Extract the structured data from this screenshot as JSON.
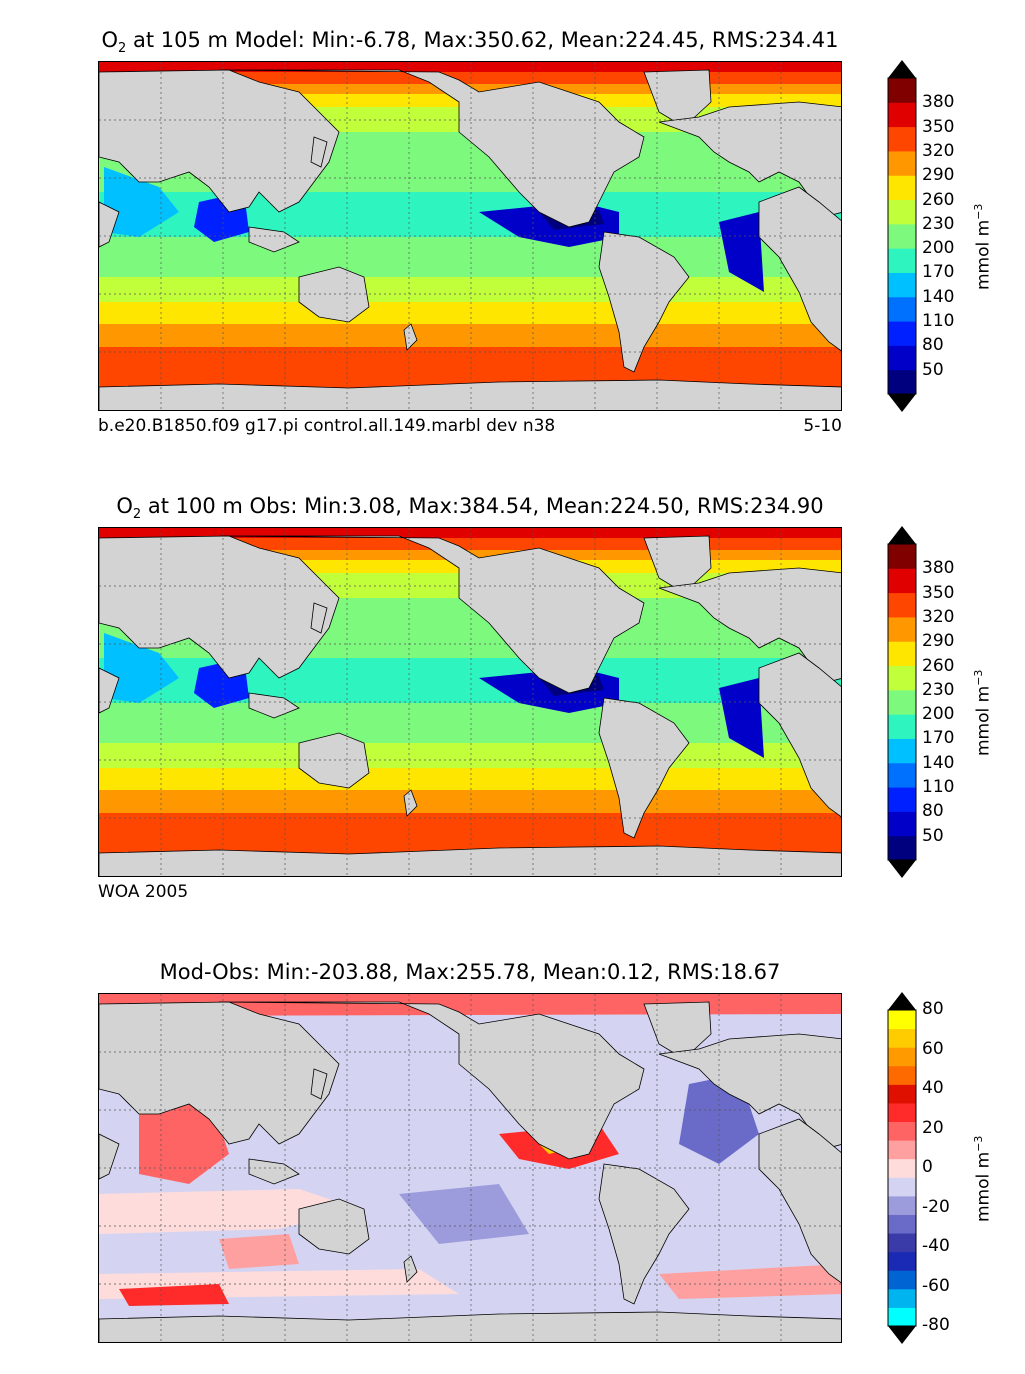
{
  "panels": [
    {
      "id": "model",
      "title_species": "O",
      "title_sub": "2",
      "title_rest": " at 105 m Model: Min:-6.78, Max:350.62, Mean:224.45, RMS:234.41",
      "caption_left": "b.e20.B1850.f09 g17.pi control.all.149.marbl dev n38",
      "caption_right": "5-10",
      "unit_base": "mmol m",
      "unit_exp": "−3",
      "ticks": [
        "380",
        "350",
        "320",
        "290",
        "260",
        "230",
        "200",
        "170",
        "140",
        "110",
        "80",
        "50"
      ],
      "colors": [
        "#00007f",
        "#0000c8",
        "#0020ff",
        "#0070ff",
        "#00c0ff",
        "#2ef5c0",
        "#7dfa7d",
        "#c0ff3a",
        "#ffe600",
        "#ff9800",
        "#ff4600",
        "#e00000",
        "#800000"
      ]
    },
    {
      "id": "obs",
      "title_species": "O",
      "title_sub": "2",
      "title_rest": " at 100 m Obs: Min:3.08, Max:384.54, Mean:224.50, RMS:234.90",
      "caption_left": "WOA 2005",
      "caption_right": "",
      "unit_base": "mmol m",
      "unit_exp": "−3",
      "ticks": [
        "380",
        "350",
        "320",
        "290",
        "260",
        "230",
        "200",
        "170",
        "140",
        "110",
        "80",
        "50"
      ],
      "colors": [
        "#00007f",
        "#0000c8",
        "#0020ff",
        "#0070ff",
        "#00c0ff",
        "#2ef5c0",
        "#7dfa7d",
        "#c0ff3a",
        "#ffe600",
        "#ff9800",
        "#ff4600",
        "#e00000",
        "#800000"
      ]
    },
    {
      "id": "diff",
      "title_species": "",
      "title_sub": "",
      "title_rest": "Mod-Obs: Min:-203.88, Max:255.78, Mean:0.12, RMS:18.67",
      "caption_left": "",
      "caption_right": "",
      "unit_base": "mmol m",
      "unit_exp": "−3",
      "ticks": [
        "80",
        "60",
        "40",
        "20",
        "0",
        "-20",
        "-40",
        "-60",
        "-80"
      ],
      "colors": [
        "#00ffff",
        "#00b4f0",
        "#0064d2",
        "#1a2ab4",
        "#3a3aa8",
        "#6a6ac8",
        "#9c9cdc",
        "#d4d4f2",
        "#ffdcdc",
        "#ffa0a0",
        "#ff6464",
        "#ff2a2a",
        "#e01000",
        "#ff6a00",
        "#ff9a00",
        "#ffcc00",
        "#ffff00"
      ]
    }
  ],
  "chart_data": [
    {
      "type": "heatmap",
      "title": "O2 at 105 m Model: Min:-6.78, Max:350.62, Mean:224.45, RMS:234.41",
      "stats": {
        "min": -6.78,
        "max": 350.62,
        "mean": 224.45,
        "rms": 234.41
      },
      "depth_m": 105,
      "colorbar_levels": [
        50,
        80,
        110,
        140,
        170,
        200,
        230,
        260,
        290,
        320,
        350,
        380
      ],
      "colorbar_label": "mmol m^-3",
      "x": "longitude (global map, Pacific-centred)",
      "y": "latitude",
      "grid": true
    },
    {
      "type": "heatmap",
      "title": "O2 at 100 m Obs: Min:3.08, Max:384.54, Mean:224.50, RMS:234.90",
      "stats": {
        "min": 3.08,
        "max": 384.54,
        "mean": 224.5,
        "rms": 234.9
      },
      "depth_m": 100,
      "colorbar_levels": [
        50,
        80,
        110,
        140,
        170,
        200,
        230,
        260,
        290,
        320,
        350,
        380
      ],
      "colorbar_label": "mmol m^-3",
      "grid": true
    },
    {
      "type": "heatmap",
      "title": "Mod-Obs: Min:-203.88, Max:255.78, Mean:0.12, RMS:18.67",
      "stats": {
        "min": -203.88,
        "max": 255.78,
        "mean": 0.12,
        "rms": 18.67
      },
      "colorbar_levels": [
        -80,
        -60,
        -40,
        -20,
        0,
        20,
        40,
        60,
        80
      ],
      "colorbar_label": "mmol m^-3",
      "grid": true
    }
  ]
}
